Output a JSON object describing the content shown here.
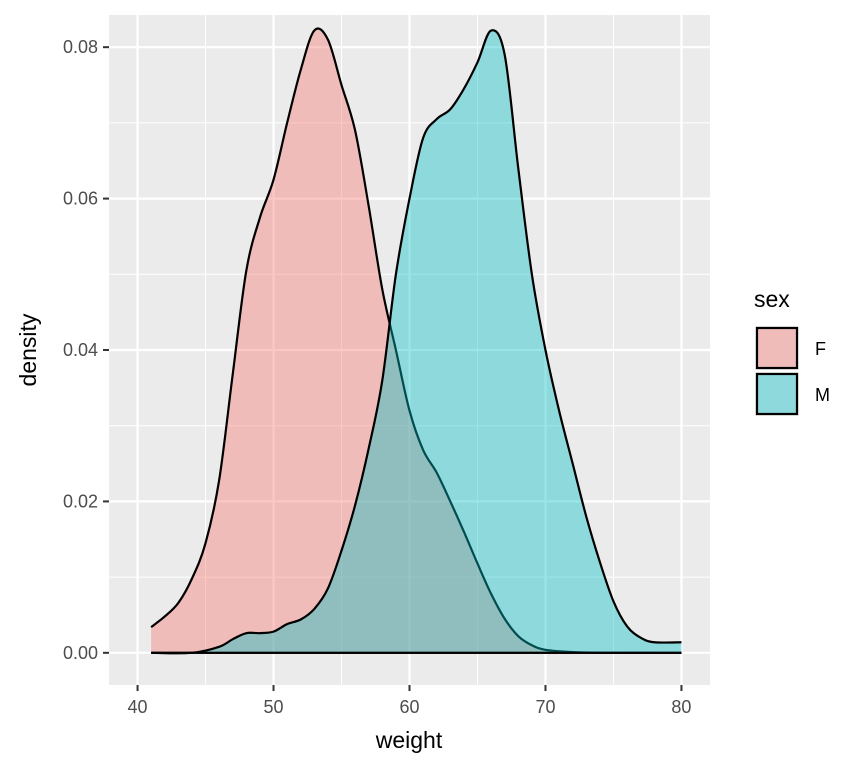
{
  "chart_data": {
    "type": "area",
    "xlabel": "weight",
    "ylabel": "density",
    "xlim": [
      40,
      80
    ],
    "ylim": [
      0,
      0.08
    ],
    "x_ticks": [
      "40",
      "50",
      "60",
      "70",
      "80"
    ],
    "y_ticks": [
      "0.00",
      "0.02",
      "0.04",
      "0.06",
      "0.08"
    ],
    "legend": {
      "title": "sex",
      "position": "right"
    },
    "grid": true,
    "series": [
      {
        "name": "F",
        "fill": "#F8766D",
        "x": [
          41,
          42,
          43,
          44,
          45,
          46,
          47,
          48,
          49,
          50,
          51,
          52,
          53,
          54,
          55,
          56,
          57,
          58,
          59,
          60,
          61,
          62,
          63,
          64,
          65,
          66,
          67,
          68,
          69,
          70,
          72,
          75,
          78,
          80
        ],
        "y": [
          0.0034,
          0.0048,
          0.0066,
          0.0098,
          0.0145,
          0.0228,
          0.0368,
          0.0505,
          0.0575,
          0.0625,
          0.07,
          0.077,
          0.0822,
          0.081,
          0.075,
          0.069,
          0.059,
          0.048,
          0.04,
          0.032,
          0.0268,
          0.0238,
          0.02,
          0.016,
          0.0118,
          0.0078,
          0.0045,
          0.0022,
          0.001,
          0.0004,
          0.0001,
          0.0,
          0.0,
          0.0
        ]
      },
      {
        "name": "M",
        "fill": "#00BFC4",
        "x": [
          41,
          44,
          46,
          47,
          48,
          49,
          50,
          51,
          52,
          53,
          54,
          55,
          56,
          57,
          58,
          59,
          60,
          61,
          62,
          63,
          64,
          65,
          66,
          67,
          68,
          69,
          70,
          71,
          72,
          73,
          74,
          75,
          76,
          77,
          78,
          80
        ],
        "y": [
          0.0,
          0.0,
          0.0008,
          0.0018,
          0.0026,
          0.0026,
          0.0028,
          0.0038,
          0.0044,
          0.0058,
          0.0085,
          0.0135,
          0.0195,
          0.027,
          0.036,
          0.05,
          0.06,
          0.068,
          0.0705,
          0.0718,
          0.0745,
          0.078,
          0.0822,
          0.079,
          0.064,
          0.05,
          0.04,
          0.032,
          0.025,
          0.018,
          0.012,
          0.0068,
          0.0035,
          0.002,
          0.0014,
          0.0014
        ]
      }
    ]
  }
}
